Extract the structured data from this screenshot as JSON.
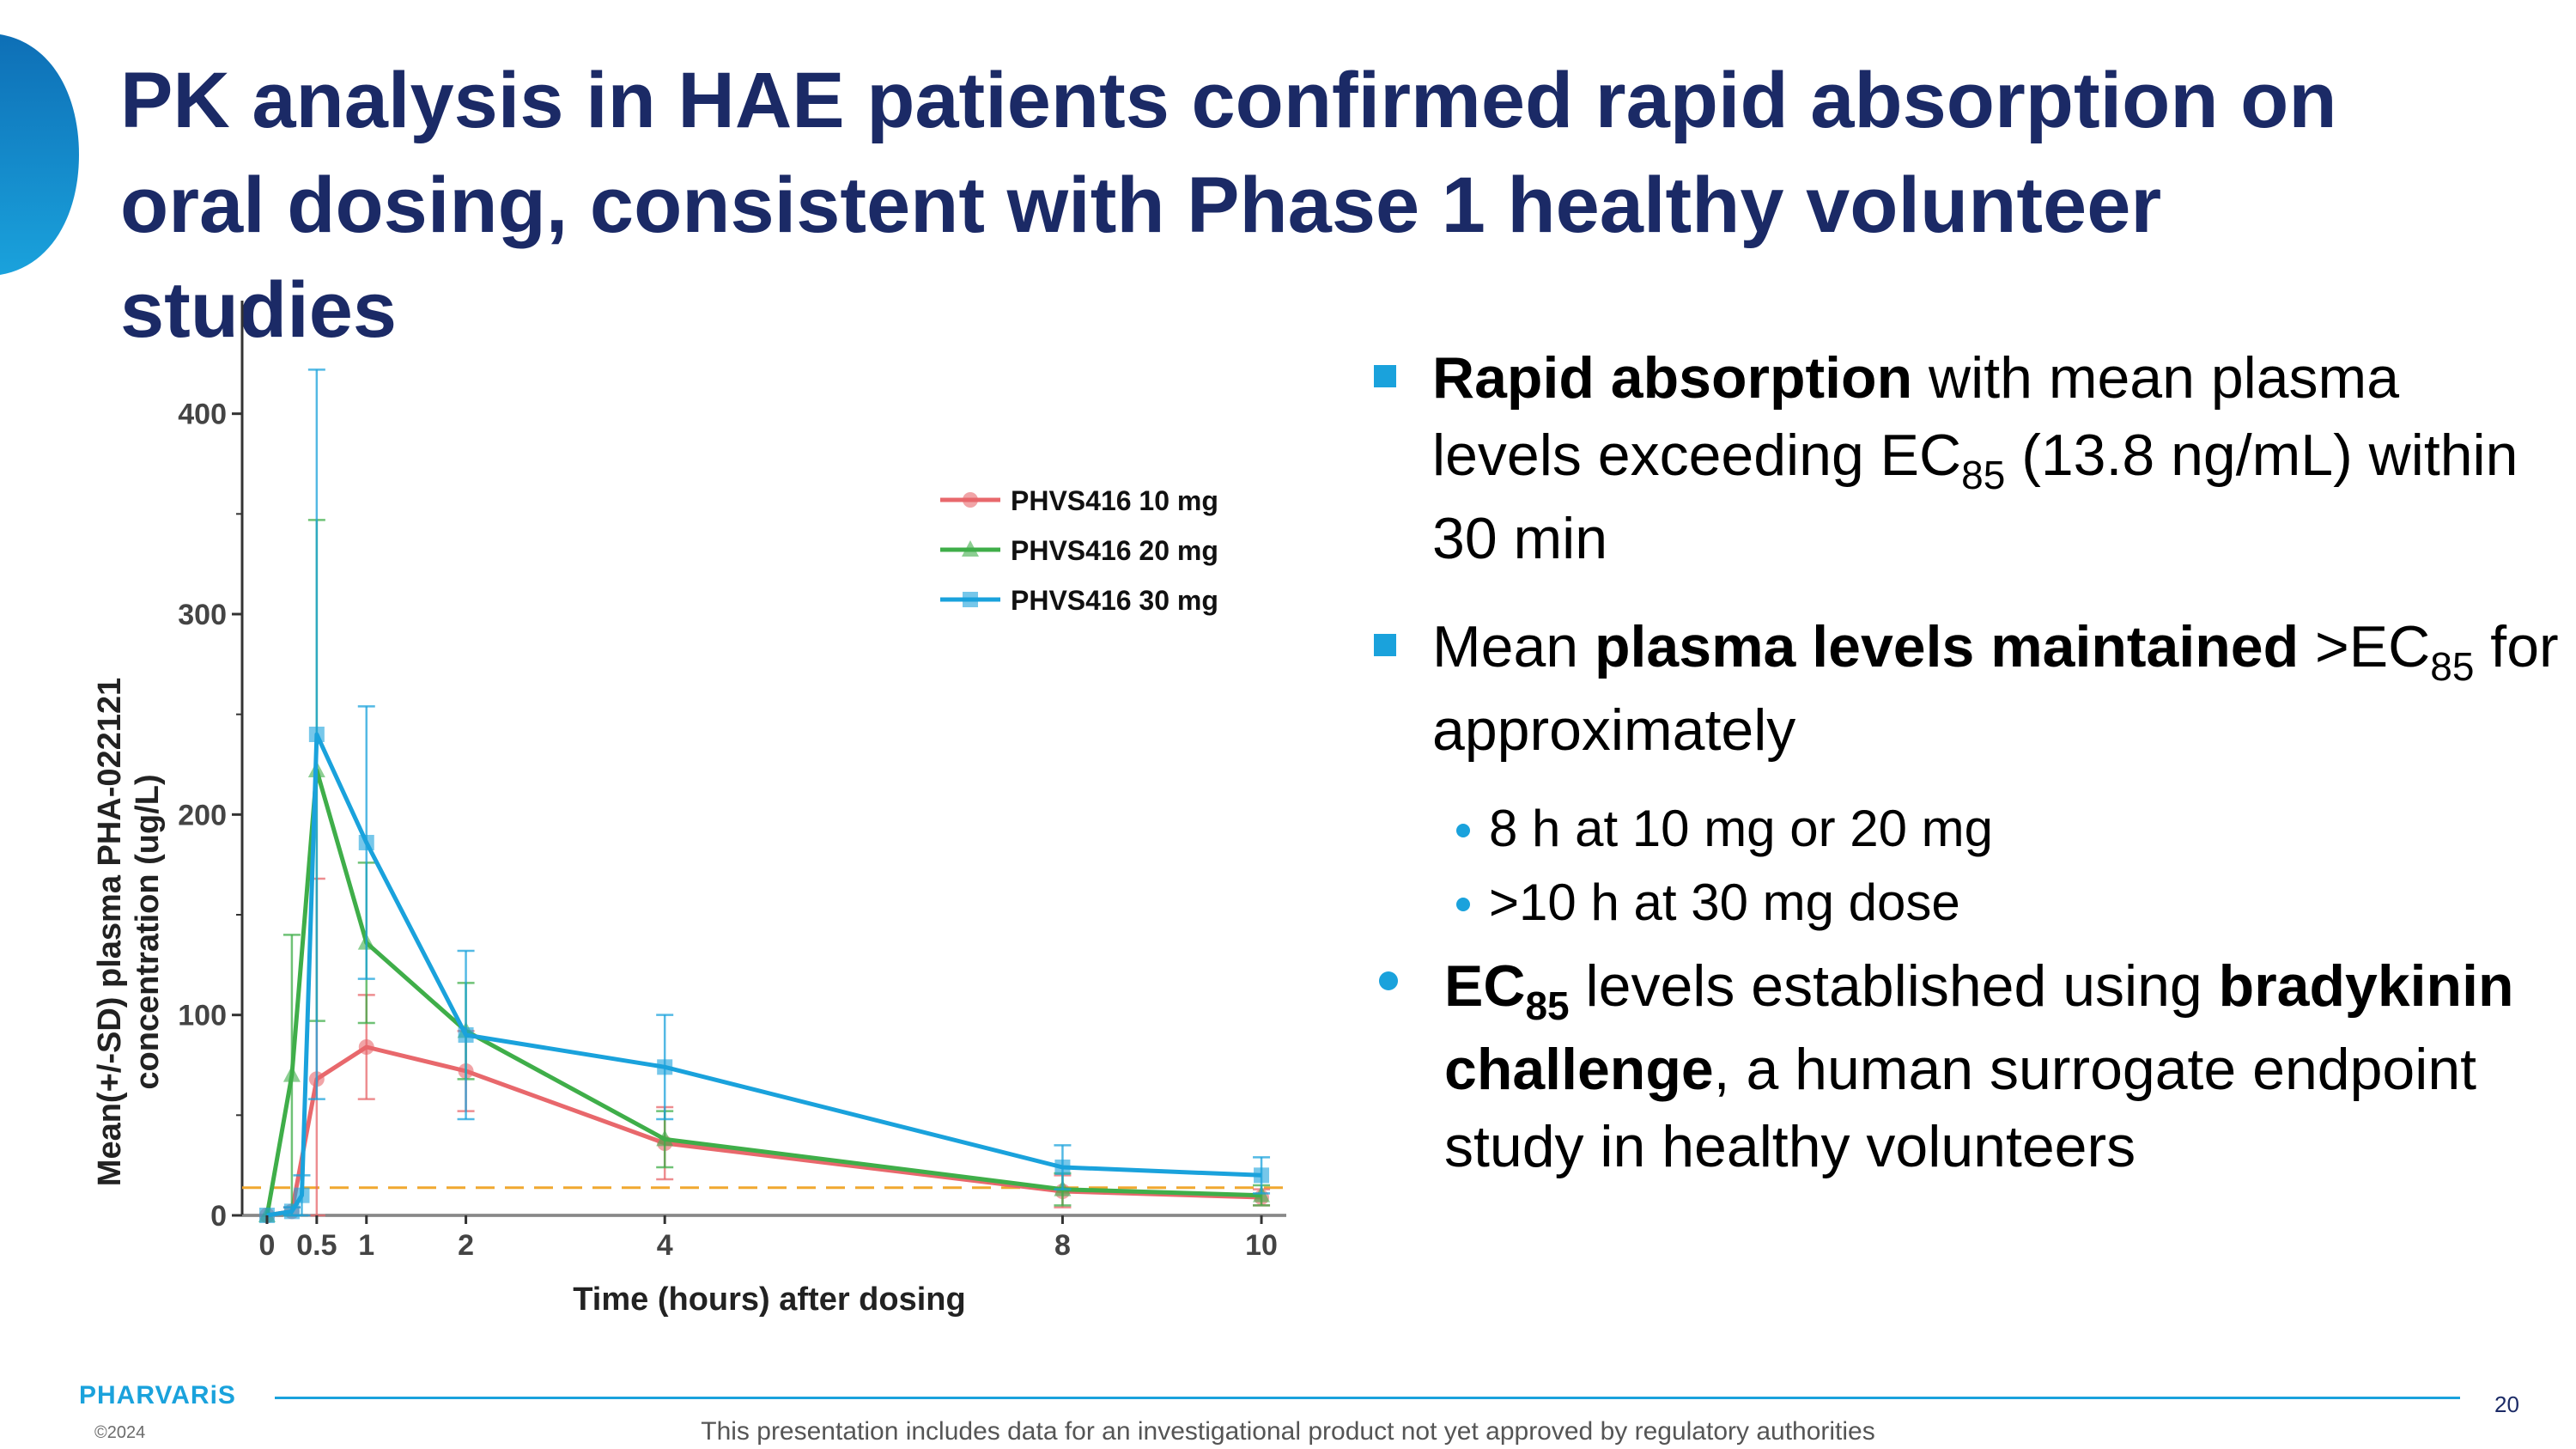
{
  "slide": {
    "title": "PK analysis in HAE patients confirmed rapid absorption on oral dosing, consistent with Phase 1 healthy volunteer studies",
    "page_number": "20",
    "logo_text": "PHARVARiS",
    "copyright": "©2024",
    "disclaimer": "This presentation includes data for an investigational product not yet approved by regulatory authorities"
  },
  "bullets": {
    "b1": {
      "bold": "Rapid absorption",
      "text1": " with mean plasma levels exceeding EC",
      "sub": "85",
      "text2": " (13.8 ng/mL) within 30 min"
    },
    "b2": {
      "text1": "Mean ",
      "bold": "plasma levels maintained",
      "text2": " >EC",
      "sub": "85",
      "text3": " for approximately",
      "subitems": [
        "8 h at 10 mg or 20 mg",
        ">10 h at 30 mg dose"
      ]
    },
    "b3": {
      "bold1": "EC",
      "sub": "85",
      "text1": " levels established using ",
      "bold2": "bradykinin challenge",
      "text2": ", a human surrogate endpoint study in healthy volunteers"
    }
  },
  "colors": {
    "title": "#1b2a66",
    "accent": "#1aa2dc",
    "series_10mg": "#e8686c",
    "series_20mg": "#3fae49",
    "series_30mg": "#1aa2dc",
    "threshold": "#f0a830"
  },
  "chart_data": {
    "type": "line",
    "xlabel": "Time (hours) after dosing",
    "ylabel": [
      "Mean(+/-SD) plasma PHA-022121",
      "concentration (ug/L)"
    ],
    "x_ticks": [
      0,
      0.5,
      1,
      2,
      4,
      8,
      10
    ],
    "x_tick_labels": [
      "0",
      "0.5",
      "1",
      "2",
      "4",
      "8",
      "10"
    ],
    "y_ticks": [
      0,
      100,
      200,
      300,
      400
    ],
    "xlim": [
      -0.25,
      10.25
    ],
    "ylim": [
      0,
      450
    ],
    "legend_position": "top-right",
    "threshold": 13.8,
    "series": [
      {
        "name": "PHVS416 10 mg",
        "color": "#e8686c",
        "marker": "circle",
        "points": [
          {
            "x": 0,
            "y": 0,
            "sd": 0
          },
          {
            "x": 0.25,
            "y": 2,
            "sd": 2
          },
          {
            "x": 0.5,
            "y": 68,
            "sd": 100
          },
          {
            "x": 1,
            "y": 84,
            "sd": 26
          },
          {
            "x": 2,
            "y": 72,
            "sd": 20
          },
          {
            "x": 4,
            "y": 36,
            "sd": 18
          },
          {
            "x": 8,
            "y": 12,
            "sd": 8
          },
          {
            "x": 10,
            "y": 9,
            "sd": 4
          }
        ]
      },
      {
        "name": "PHVS416 20 mg",
        "color": "#3fae49",
        "marker": "triangle",
        "points": [
          {
            "x": 0,
            "y": 0,
            "sd": 0
          },
          {
            "x": 0.25,
            "y": 70,
            "sd": 70
          },
          {
            "x": 0.5,
            "y": 222,
            "sd": 125
          },
          {
            "x": 1,
            "y": 136,
            "sd": 40
          },
          {
            "x": 2,
            "y": 92,
            "sd": 24
          },
          {
            "x": 4,
            "y": 38,
            "sd": 14
          },
          {
            "x": 8,
            "y": 13,
            "sd": 8
          },
          {
            "x": 10,
            "y": 10,
            "sd": 5
          }
        ]
      },
      {
        "name": "PHVS416 30 mg",
        "color": "#1aa2dc",
        "marker": "square",
        "points": [
          {
            "x": 0,
            "y": 0,
            "sd": 0
          },
          {
            "x": 0.25,
            "y": 2,
            "sd": 2
          },
          {
            "x": 0.35,
            "y": 10,
            "sd": 10
          },
          {
            "x": 0.5,
            "y": 240,
            "sd": 182
          },
          {
            "x": 1,
            "y": 186,
            "sd": 68
          },
          {
            "x": 2,
            "y": 90,
            "sd": 42
          },
          {
            "x": 4,
            "y": 74,
            "sd": 26
          },
          {
            "x": 8,
            "y": 24,
            "sd": 11
          },
          {
            "x": 10,
            "y": 20,
            "sd": 9
          }
        ]
      }
    ]
  }
}
